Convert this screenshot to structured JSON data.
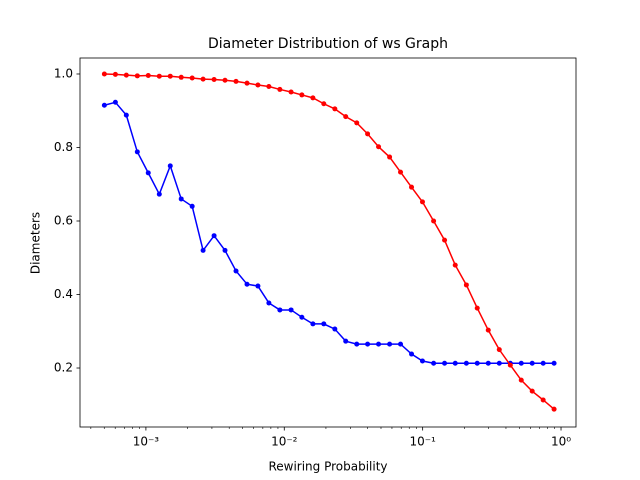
{
  "chart_data": {
    "type": "line",
    "title": "Diameter Distribution of ws Graph",
    "xlabel": "Rewiring Probability",
    "ylabel": "Diameters",
    "xscale": "log",
    "x": [
      0.000501,
      0.000602,
      0.000722,
      0.000867,
      0.00104,
      0.00125,
      0.0015,
      0.0018,
      0.00216,
      0.00259,
      0.00311,
      0.00373,
      0.00448,
      0.00538,
      0.00645,
      0.00774,
      0.00929,
      0.0112,
      0.0134,
      0.0161,
      0.0193,
      0.0232,
      0.0278,
      0.0334,
      0.04,
      0.048,
      0.0577,
      0.0692,
      0.0831,
      0.0997,
      0.12,
      0.144,
      0.172,
      0.207,
      0.248,
      0.298,
      0.358,
      0.43,
      0.516,
      0.619,
      0.743,
      0.891
    ],
    "series": [
      {
        "color": "#0000ff",
        "values": [
          0.915,
          0.923,
          0.888,
          0.788,
          0.731,
          0.673,
          0.75,
          0.66,
          0.64,
          0.52,
          0.56,
          0.52,
          0.464,
          0.428,
          0.423,
          0.377,
          0.358,
          0.358,
          0.338,
          0.32,
          0.32,
          0.306,
          0.273,
          0.265,
          0.265,
          0.265,
          0.265,
          0.265,
          0.238,
          0.219,
          0.213,
          0.213,
          0.213,
          0.213,
          0.213,
          0.213,
          0.213,
          0.213,
          0.213,
          0.213,
          0.213,
          0.213
        ]
      },
      {
        "color": "#ff0000",
        "values": [
          1.0,
          0.999,
          0.997,
          0.995,
          0.996,
          0.994,
          0.994,
          0.991,
          0.989,
          0.986,
          0.985,
          0.983,
          0.98,
          0.975,
          0.97,
          0.966,
          0.958,
          0.951,
          0.943,
          0.935,
          0.919,
          0.905,
          0.884,
          0.867,
          0.837,
          0.802,
          0.774,
          0.733,
          0.692,
          0.652,
          0.6,
          0.548,
          0.48,
          0.426,
          0.363,
          0.303,
          0.25,
          0.208,
          0.167,
          0.137,
          0.113,
          0.088
        ]
      }
    ],
    "xlim": [
      0.000334,
      1.283
    ],
    "xticks": [
      {
        "value": 0.001,
        "label": "10⁻³"
      },
      {
        "value": 0.01,
        "label": "10⁻²"
      },
      {
        "value": 0.1,
        "label": "10⁻¹"
      },
      {
        "value": 1,
        "label": "10⁰"
      }
    ],
    "ylim": [
      0.0395,
      1.0435
    ],
    "yticks": [
      0.2,
      0.4,
      0.6,
      0.8,
      {
        "value": 1,
        "label": "1.0"
      }
    ],
    "grid": false
  }
}
